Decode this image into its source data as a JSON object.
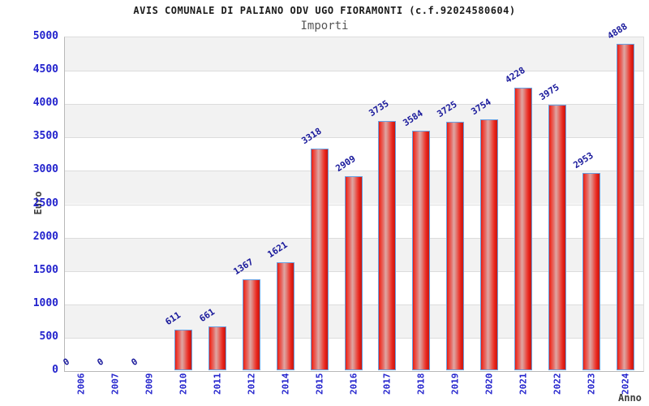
{
  "chart_data": {
    "type": "bar",
    "title": "AVIS COMUNALE DI PALIANO ODV UGO FIORAMONTI (c.f.92024580604)",
    "subtitle": "Importi",
    "xlabel": "Anno",
    "ylabel": "Euro",
    "categories": [
      "2006",
      "2007",
      "2009",
      "2010",
      "2011",
      "2012",
      "2014",
      "2015",
      "2016",
      "2017",
      "2018",
      "2019",
      "2020",
      "2021",
      "2022",
      "2023",
      "2024"
    ],
    "values": [
      0,
      0,
      0,
      611,
      661,
      1367,
      1621,
      3318,
      2909,
      3735,
      3584,
      3725,
      3754,
      4228,
      3975,
      2953,
      4888
    ],
    "ylim": [
      0,
      5000
    ],
    "ytick_step": 500,
    "yticks": [
      0,
      500,
      1000,
      1500,
      2000,
      2500,
      3000,
      3500,
      4000,
      4500,
      5000
    ],
    "grid": "horizontal-bands-alternating",
    "legend": "none",
    "colors": {
      "bar_fill_edge": "#e62018",
      "bar_fill_highlight": "#dfa6a3",
      "bar_border": "#69a1e2",
      "axis_tick_label": "#2323cd",
      "value_label": "#19199b",
      "band_gray": "#f2f2f2",
      "band_white": "#ffffff",
      "axis_title": "#3d3d3d",
      "title": "#1a1a1a",
      "subtitle": "#555555"
    }
  }
}
